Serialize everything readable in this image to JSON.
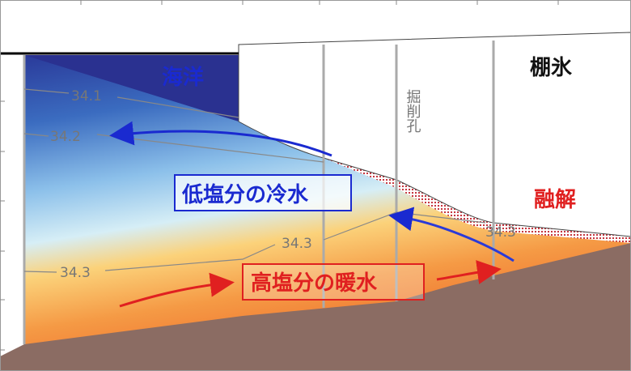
{
  "labels": {
    "ocean": "海洋",
    "ice_shelf": "棚氷",
    "borehole": "掘削孔",
    "cold_water": "低塩分の冷水",
    "melting": "融解",
    "warm_water": "高塩分の暖水"
  },
  "contours": [
    "34.1",
    "34.2",
    "34.3",
    "34.3",
    "34.3"
  ]
}
